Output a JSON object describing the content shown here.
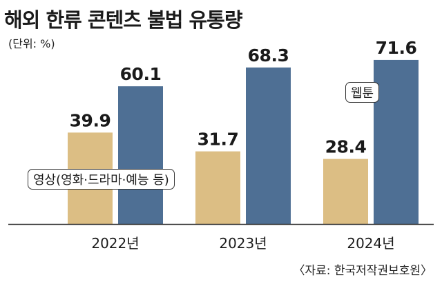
{
  "title": "해외 한류 콘텐츠 불법 유통량",
  "unit_label": "(단위: %)",
  "source": "〈자료: 한국저작권보호원〉",
  "colors": {
    "video": "#dcbe84",
    "webtoon": "#4e6f94",
    "axis": "#333333"
  },
  "chart_data": {
    "type": "bar",
    "title": "해외 한류 콘텐츠 불법 유통량",
    "ylabel": "%",
    "xlabel": "",
    "categories": [
      "2022년",
      "2023년",
      "2024년"
    ],
    "series": [
      {
        "name": "영상(영화·드라마·예능 등)",
        "values": [
          39.9,
          31.7,
          28.4
        ]
      },
      {
        "name": "웹툰",
        "values": [
          60.1,
          68.3,
          71.6
        ]
      }
    ],
    "ylim": [
      0,
      80
    ],
    "grid": false,
    "legend": "inline"
  }
}
